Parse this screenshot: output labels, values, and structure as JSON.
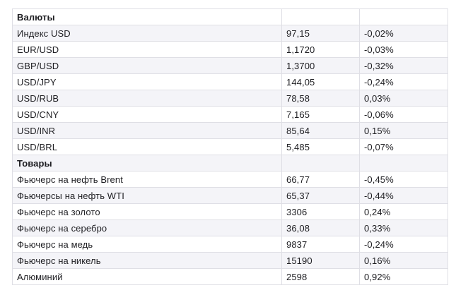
{
  "table": {
    "rows": [
      {
        "type": "header",
        "label": "Валюты",
        "value": "",
        "change": ""
      },
      {
        "type": "data",
        "label": "Индекс USD",
        "value": "97,15",
        "change": "-0,02%"
      },
      {
        "type": "data",
        "label": "EUR/USD",
        "value": "1,1720",
        "change": "-0,03%"
      },
      {
        "type": "data",
        "label": "GBP/USD",
        "value": "1,3700",
        "change": "-0,32%"
      },
      {
        "type": "data",
        "label": "USD/JPY",
        "value": "144,05",
        "change": "-0,24%"
      },
      {
        "type": "data",
        "label": "USD/RUB",
        "value": "78,58",
        "change": "0,03%"
      },
      {
        "type": "data",
        "label": "USD/CNY",
        "value": "7,165",
        "change": "-0,06%"
      },
      {
        "type": "data",
        "label": "USD/INR",
        "value": "85,64",
        "change": "0,15%"
      },
      {
        "type": "data",
        "label": "USD/BRL",
        "value": "5,485",
        "change": "-0,07%"
      },
      {
        "type": "header",
        "label": "Товары",
        "value": "",
        "change": ""
      },
      {
        "type": "data",
        "label": "Фьючерс на нефть Brent",
        "value": "66,77",
        "change": "-0,45%"
      },
      {
        "type": "data",
        "label": "Фьючерсы на нефть WTI",
        "value": "65,37",
        "change": "-0,44%"
      },
      {
        "type": "data",
        "label": "Фьючерс на золото",
        "value": "3306",
        "change": "0,24%"
      },
      {
        "type": "data",
        "label": "Фьючерс на серебро",
        "value": "36,08",
        "change": "0,33%"
      },
      {
        "type": "data",
        "label": "Фьючерс на медь",
        "value": "9837",
        "change": "-0,24%"
      },
      {
        "type": "data",
        "label": "Фьючерс на никель",
        "value": "15190",
        "change": "0,16%"
      },
      {
        "type": "data",
        "label": "Алюминий",
        "value": "2598",
        "change": "0,92%"
      }
    ]
  },
  "colors": {
    "stripe": "#f4f4f8",
    "border": "#dfdfe5",
    "text": "#1e1e22",
    "background": "#ffffff"
  }
}
